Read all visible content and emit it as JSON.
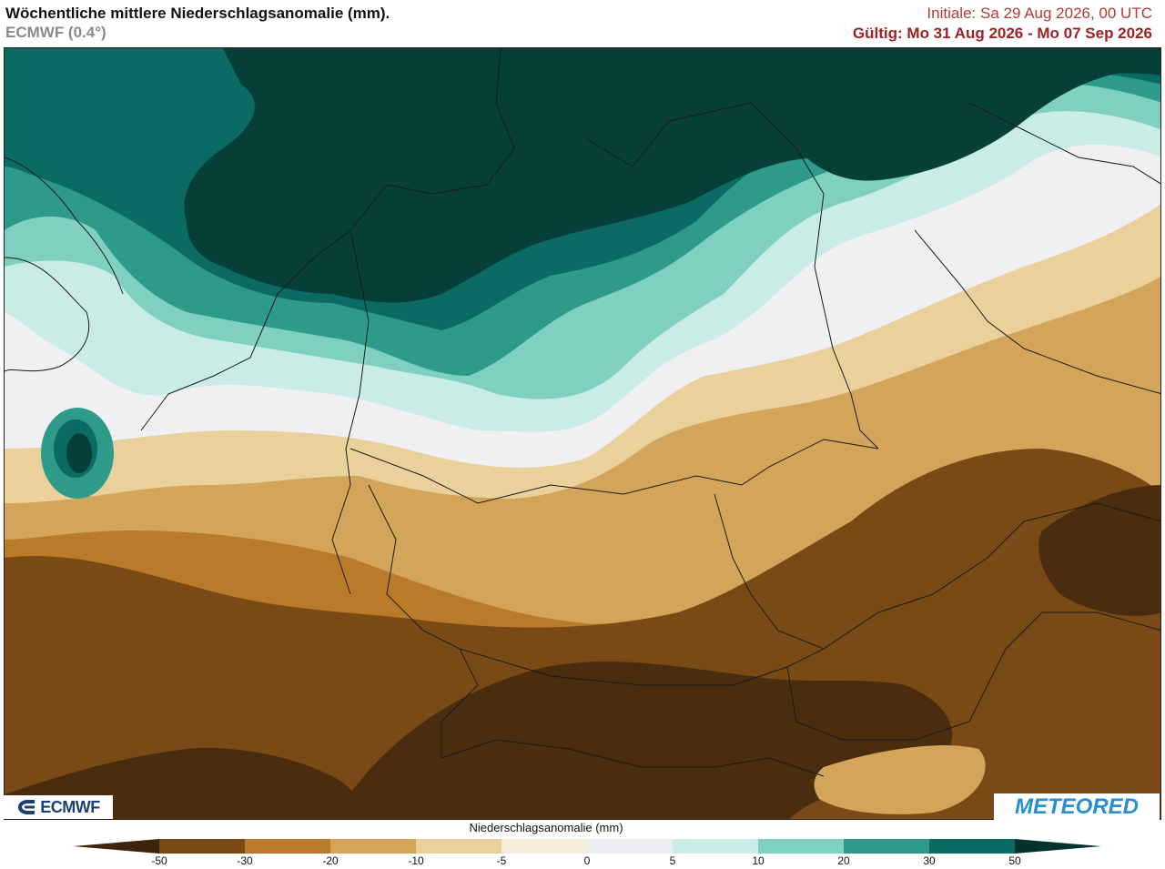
{
  "header": {
    "title": "Wöchentliche mittlere Niederschlagsanomalie (mm).",
    "model": "ECMWF (0.4°)",
    "initial": "Initiale:  Sa 29 Aug 2026, 00 UTC",
    "valid": "Gültig: Mo 31 Aug 2026 - Mo 07 Sep 2026"
  },
  "logos": {
    "left": "ECMWF",
    "right": "METEORED"
  },
  "legend": {
    "title": "Niederschlagsanomalie (mm)",
    "ticks": [
      "-50",
      "-30",
      "-20",
      "-10",
      "-5",
      "0",
      "5",
      "10",
      "20",
      "30",
      "50"
    ],
    "colors": [
      "#4a2c0e",
      "#7a4a16",
      "#b97a2a",
      "#d3a55a",
      "#ead09a",
      "#f3ecd7",
      "#ecedf0",
      "#c9ece4",
      "#7fd0c0",
      "#2e9a8a",
      "#0b6b63",
      "#063f38"
    ],
    "low_end_color": "#3d240b",
    "high_end_color": "#04332d"
  },
  "map_colors": {
    "c_m50": "#4a2c0e",
    "c_m30": "#7a4a16",
    "c_m20": "#b97a2a",
    "c_m10": "#d3a55a",
    "c_m5": "#ead09a",
    "c_0": "#f0f0f3",
    "c_5": "#c9ece4",
    "c_10": "#7fd0c0",
    "c_20": "#2e9a8a",
    "c_30": "#0b6b63",
    "c_50": "#063f38"
  }
}
